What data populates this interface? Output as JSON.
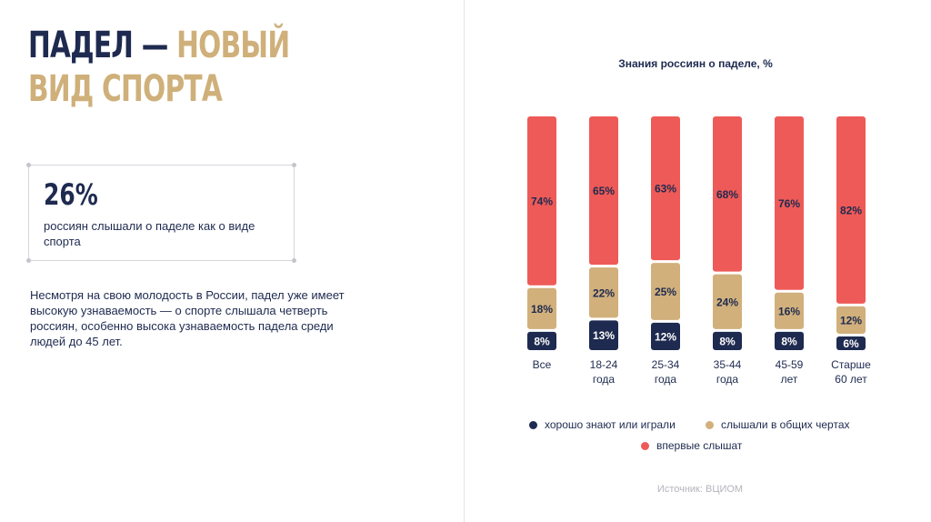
{
  "header": {
    "title_part1": "ПАДЕЛ — ",
    "title_part2": "НОВЫЙ",
    "title_line2": "ВИД СПОРТА"
  },
  "stat": {
    "value": "26%",
    "caption": "россиян слышали о паделе как о виде спорта"
  },
  "body_text": "Несмотря на свою молодость в России, падел уже имеет высокую узнаваемость — о спорте слышала четверть россиян, особенно высока узнаваемость падела среди людей до 45 лет.",
  "source": "Источник: ВЦИОМ",
  "colors": {
    "navy": "#1e2a4f",
    "gold": "#d1b07c",
    "red": "#ee5a57"
  },
  "chart_data": {
    "type": "bar",
    "stacked": true,
    "title": "Знания россиян о паделе, %",
    "categories": [
      [
        "Все"
      ],
      [
        "18-24",
        "года"
      ],
      [
        "25-34",
        "года"
      ],
      [
        "35-44",
        "года"
      ],
      [
        "45-59",
        "лет"
      ],
      [
        "Старше",
        "60 лет"
      ]
    ],
    "series": [
      {
        "name": "хорошо знают или играли",
        "color": "#1e2a4f",
        "label_color": "#ffffff",
        "values": [
          8,
          13,
          12,
          8,
          8,
          6
        ]
      },
      {
        "name": "слышали в общих чертах",
        "color": "#d1b07c",
        "label_color": "#1e2a4f",
        "values": [
          18,
          22,
          25,
          24,
          16,
          12
        ]
      },
      {
        "name": "впервые слышат",
        "color": "#ee5a57",
        "label_color": "#1e2a4f",
        "values": [
          74,
          65,
          63,
          68,
          76,
          82
        ]
      }
    ],
    "value_suffix": "%",
    "xlabel": "",
    "ylabel": "",
    "ylim": [
      0,
      100
    ],
    "grid": false,
    "legend": "bottom"
  }
}
